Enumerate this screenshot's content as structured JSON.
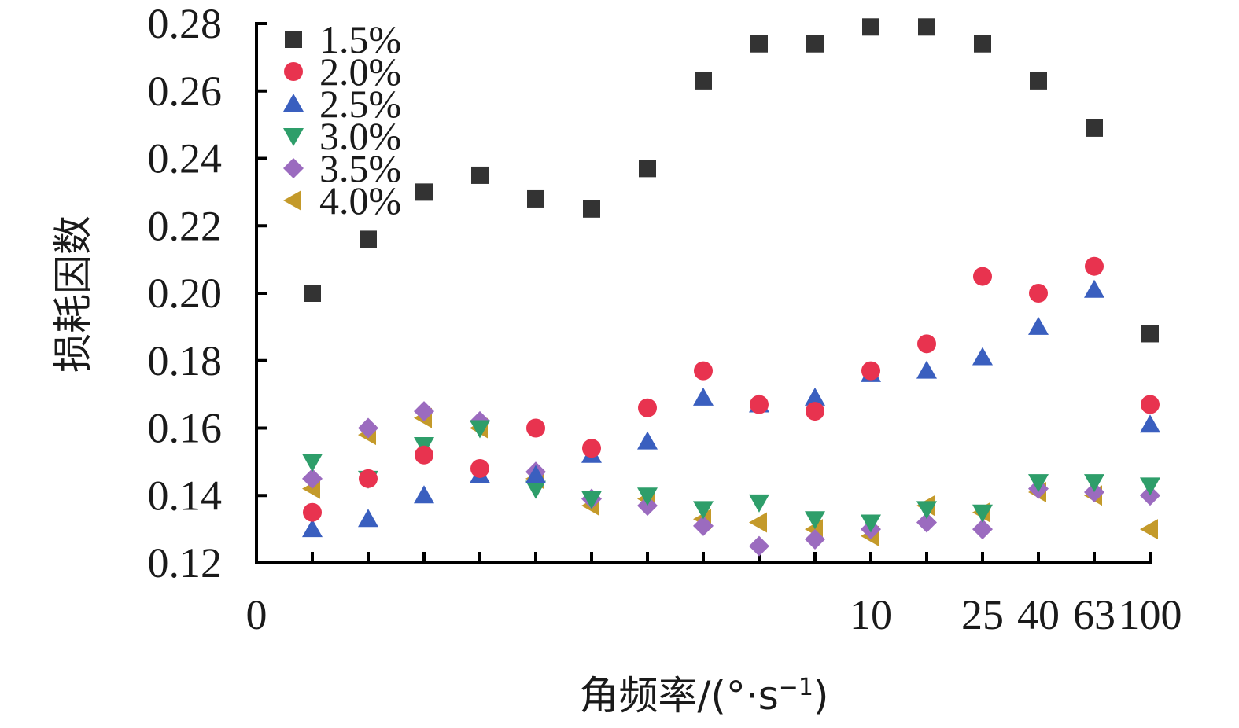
{
  "chart_data": {
    "type": "scatter",
    "xlabel": "角频率/(°·s",
    "xlabel_sup": "−1",
    "xlabel_close": ")",
    "ylabel": "损耗因数",
    "ylim": [
      0.12,
      0.28
    ],
    "yticks": [
      "0.12",
      "0.14",
      "0.16",
      "0.18",
      "0.20",
      "0.22",
      "0.24",
      "0.26",
      "0.28"
    ],
    "xtick_labels": [
      {
        "index": 0,
        "label": "0"
      },
      {
        "index": 11,
        "label": "10"
      },
      {
        "index": 13,
        "label": "25"
      },
      {
        "index": 14,
        "label": "40"
      },
      {
        "index": 15,
        "label": "63"
      },
      {
        "index": 16,
        "label": "100"
      }
    ],
    "legend_position": "top-left",
    "grid": false,
    "series": [
      {
        "name": "1.5%",
        "marker": "square",
        "color": "#333333",
        "values": [
          0.2,
          0.216,
          0.23,
          0.235,
          0.228,
          0.225,
          0.237,
          0.263,
          0.274,
          0.274,
          0.279,
          0.279,
          0.274,
          0.263,
          0.249,
          0.188
        ]
      },
      {
        "name": "2.0%",
        "marker": "circle",
        "color": "#e8334f",
        "values": [
          0.135,
          0.145,
          0.152,
          0.148,
          0.16,
          0.154,
          0.166,
          0.177,
          0.167,
          0.165,
          0.177,
          0.185,
          0.205,
          0.2,
          0.208,
          0.167
        ]
      },
      {
        "name": "2.5%",
        "marker": "triangle-up",
        "color": "#3a5fbf",
        "values": [
          0.13,
          0.133,
          0.14,
          0.146,
          0.146,
          0.152,
          0.156,
          0.169,
          0.167,
          0.169,
          0.176,
          0.177,
          0.181,
          0.19,
          0.201,
          0.161
        ]
      },
      {
        "name": "3.0%",
        "marker": "triangle-down",
        "color": "#2e9e6a",
        "values": [
          0.15,
          0.145,
          0.155,
          0.16,
          0.142,
          0.139,
          0.14,
          0.136,
          0.138,
          0.133,
          0.132,
          0.136,
          0.135,
          0.144,
          0.144,
          0.143
        ]
      },
      {
        "name": "3.5%",
        "marker": "diamond",
        "color": "#9b6bbf",
        "values": [
          0.145,
          0.16,
          0.165,
          0.162,
          0.147,
          0.139,
          0.137,
          0.131,
          0.125,
          0.127,
          0.13,
          0.132,
          0.13,
          0.142,
          0.141,
          0.14
        ]
      },
      {
        "name": "4.0%",
        "marker": "triangle-left",
        "color": "#c49a2a",
        "values": [
          0.142,
          0.158,
          0.163,
          0.16,
          0.145,
          0.137,
          0.139,
          0.133,
          0.132,
          0.13,
          0.128,
          0.137,
          0.135,
          0.141,
          0.14,
          0.13
        ]
      }
    ]
  }
}
